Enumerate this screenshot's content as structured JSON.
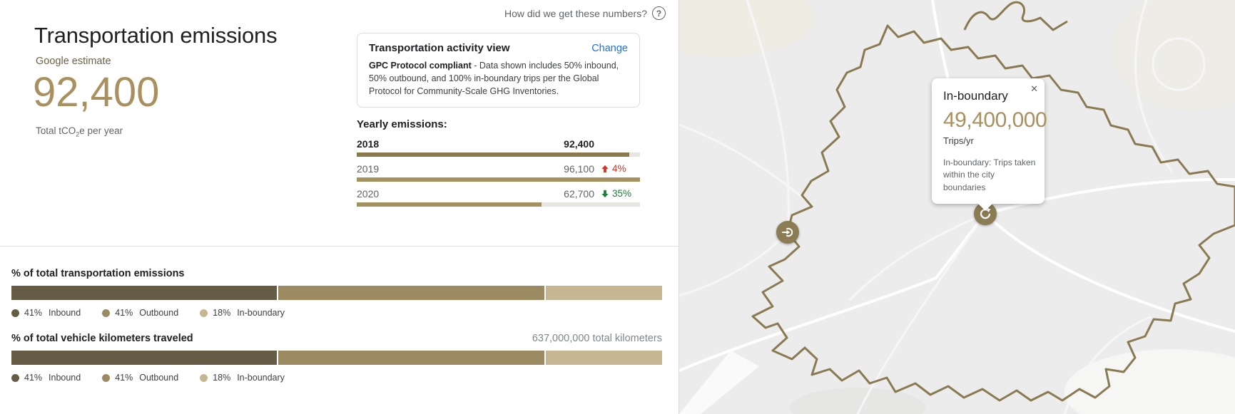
{
  "header": {
    "help_label": "How did we get these numbers?",
    "title": "Transportation emissions",
    "estimate_label": "Google estimate",
    "total_value": "92,400",
    "caption_prefix": "Total tCO",
    "caption_sub": "2",
    "caption_suffix": "e per year"
  },
  "activity_card": {
    "title": "Transportation activity view",
    "change_label": "Change",
    "body_bold": "GPC Protocol compliant",
    "body_rest": " - Data shown includes 50% inbound, 50% outbound, and 100% in-boundary trips per the Global Protocol for Community-Scale GHG Inventories."
  },
  "yearly": {
    "heading": "Yearly emissions:",
    "rows": [
      {
        "year": "2018",
        "value": "92,400",
        "change": null,
        "direction": null,
        "fill_pct": 96.2,
        "color": "#89794d",
        "emphasis": true
      },
      {
        "year": "2019",
        "value": "96,100",
        "change": "4%",
        "direction": "up",
        "fill_pct": 100,
        "color": "#a39160",
        "emphasis": false
      },
      {
        "year": "2020",
        "value": "62,700",
        "change": "35%",
        "direction": "down",
        "fill_pct": 65.2,
        "color": "#a39160",
        "emphasis": false
      }
    ]
  },
  "breakdown": {
    "emissions": {
      "heading": "% of total transportation emissions",
      "segments": [
        {
          "label": "Inbound",
          "pct": 41,
          "pct_label": "41%",
          "color": "#665c45"
        },
        {
          "label": "Outbound",
          "pct": 41,
          "pct_label": "41%",
          "color": "#9c8a63"
        },
        {
          "label": "In-boundary",
          "pct": 18,
          "pct_label": "18%",
          "color": "#c6b692"
        }
      ]
    },
    "vkt": {
      "heading": "% of total vehicle kilometers traveled",
      "total_label": "637,000,000 total kilometers",
      "segments": [
        {
          "label": "Inbound",
          "pct": 41,
          "pct_label": "41%",
          "color": "#665c45"
        },
        {
          "label": "Outbound",
          "pct": 41,
          "pct_label": "41%",
          "color": "#9c8a63"
        },
        {
          "label": "In-boundary",
          "pct": 18,
          "pct_label": "18%",
          "color": "#c6b692"
        }
      ]
    }
  },
  "map": {
    "tooltip": {
      "title": "In-boundary",
      "value": "49,400,000",
      "unit": "Trips/yr",
      "description": "In-boundary: Trips taken within the city boundaries",
      "close_label": "✕"
    },
    "colors": {
      "marker": "#8b7c53",
      "boundary": "#8a7a52",
      "background": "#ececec"
    }
  },
  "colors": {
    "accent_tan": "#a8915f",
    "olive_text": "#6f6143",
    "link_blue": "#1a73e8",
    "increase_red": "#d93025",
    "decrease_green": "#188038"
  }
}
